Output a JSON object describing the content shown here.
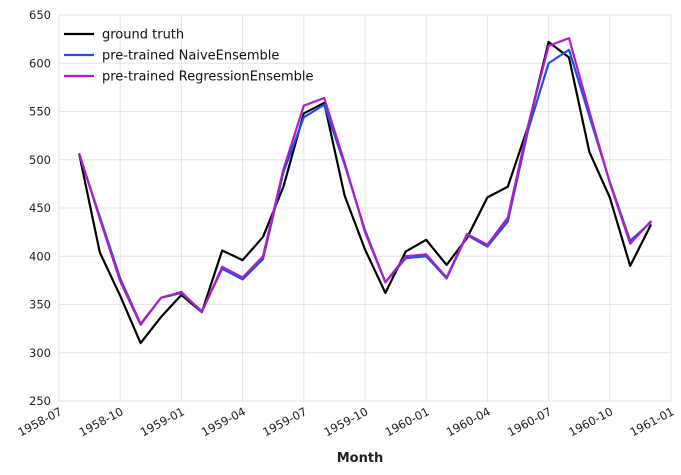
{
  "chart_data": {
    "type": "line",
    "title": "",
    "xlabel": "Month",
    "ylabel": "",
    "ylim": [
      250,
      650
    ],
    "yticks": [
      250,
      300,
      350,
      400,
      450,
      500,
      550,
      600,
      650
    ],
    "xlim": [
      "1958-07",
      "1961-01"
    ],
    "xticks": [
      "1958-07",
      "1958-10",
      "1959-01",
      "1959-04",
      "1959-07",
      "1959-10",
      "1960-01",
      "1960-04",
      "1960-07",
      "1960-10",
      "1961-01"
    ],
    "grid": true,
    "legend_position": "top-left",
    "x": [
      "1958-08",
      "1958-09",
      "1958-10",
      "1958-11",
      "1958-12",
      "1959-01",
      "1959-02",
      "1959-03",
      "1959-04",
      "1959-05",
      "1959-06",
      "1959-07",
      "1959-08",
      "1959-09",
      "1959-10",
      "1959-11",
      "1959-12",
      "1960-01",
      "1960-02",
      "1960-03",
      "1960-04",
      "1960-05",
      "1960-06",
      "1960-07",
      "1960-08",
      "1960-09",
      "1960-10",
      "1960-11",
      "1960-12"
    ],
    "series": [
      {
        "name": "ground truth",
        "color": "#000000",
        "values": [
          505,
          404,
          359,
          310,
          337,
          360,
          342,
          406,
          396,
          420,
          472,
          548,
          559,
          463,
          407,
          362,
          405,
          417,
          391,
          419,
          461,
          472,
          535,
          622,
          606,
          508,
          461,
          390,
          432
        ]
      },
      {
        "name": "pre-trained NaiveEnsemble",
        "color": "#1f4fe8",
        "values": [
          505,
          441,
          377,
          330,
          357,
          362,
          343,
          387,
          376,
          397,
          487,
          544,
          557,
          495,
          427,
          373,
          398,
          400,
          377,
          422,
          410,
          436,
          531,
          600,
          614,
          545,
          477,
          416,
          435
        ]
      },
      {
        "name": "pre-trained RegressionEnsemble",
        "color": "#b01fc2",
        "values": [
          506,
          439,
          374,
          329,
          357,
          363,
          342,
          389,
          378,
          400,
          490,
          556,
          564,
          497,
          425,
          373,
          400,
          402,
          378,
          423,
          412,
          440,
          536,
          618,
          626,
          550,
          476,
          413,
          436
        ]
      }
    ]
  }
}
